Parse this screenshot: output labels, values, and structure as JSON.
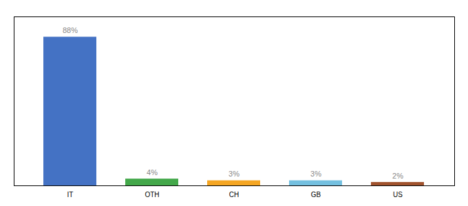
{
  "chart_data": {
    "type": "bar",
    "categories": [
      "IT",
      "OTH",
      "CH",
      "GB",
      "US"
    ],
    "values": [
      88,
      4,
      3,
      3,
      2
    ],
    "value_labels": [
      "88%",
      "4%",
      "3%",
      "3%",
      "2%"
    ],
    "colors": [
      "#4472c4",
      "#43a84a",
      "#f5a623",
      "#74c0e0",
      "#a0522d"
    ],
    "ylim": [
      0,
      100
    ],
    "grid": false,
    "data_labels": true,
    "tick_labels": "x"
  }
}
